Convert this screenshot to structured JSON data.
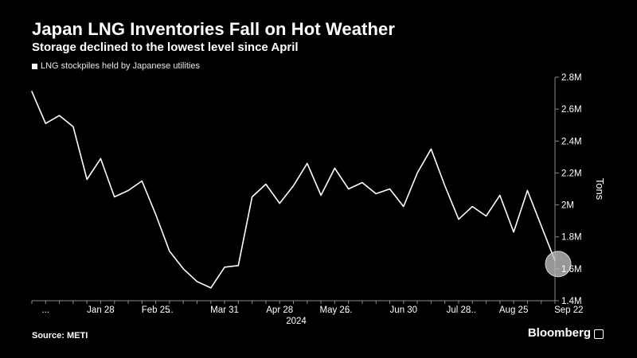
{
  "header": {
    "title": "Japan LNG Inventories Fall on Hot Weather",
    "subtitle": "Storage declined to the lowest level since April"
  },
  "legend": {
    "label": "LNG stockpiles held by Japanese utilities"
  },
  "footer": {
    "source": "Source: METI",
    "brand": "Bloomberg"
  },
  "colors": {
    "background": "#000000",
    "line": "#ffffff",
    "text": "#ffffff",
    "highlight": "#bdbdbd"
  },
  "chart_data": {
    "type": "line",
    "title": "Japan LNG Inventories Fall on Hot Weather",
    "subtitle": "Storage declined to the lowest level since April",
    "ylabel": "Tons",
    "xlabel": "",
    "ylim": [
      1.4,
      2.8
    ],
    "y_ticks": [
      1.4,
      1.6,
      1.8,
      2.0,
      2.2,
      2.4,
      2.6,
      2.8
    ],
    "y_tick_labels": [
      "1.4M",
      "1.6M",
      "1.8M",
      "2M",
      "2.2M",
      "2.4M",
      "2.6M",
      "2.8M"
    ],
    "y_axis_side": "right",
    "grid": false,
    "legend_position": "top-left",
    "x_tick_labels": [
      {
        "index": 1,
        "label": "..."
      },
      {
        "index": 5,
        "label": "Jan 28"
      },
      {
        "index": 9,
        "label": "Feb 25"
      },
      {
        "index": 10,
        "label": "..."
      },
      {
        "index": 14,
        "label": "Mar 31"
      },
      {
        "index": 18,
        "label": "Apr 28"
      },
      {
        "index": 22,
        "label": "May 26"
      },
      {
        "index": 23,
        "label": "..."
      },
      {
        "index": 27,
        "label": "Jun 30"
      },
      {
        "index": 31,
        "label": "Jul 28"
      },
      {
        "index": 32,
        "label": "..."
      },
      {
        "index": 35,
        "label": "Aug 25"
      },
      {
        "index": 39,
        "label": "Sep 22"
      }
    ],
    "year_label": "2024",
    "series": [
      {
        "name": "LNG stockpiles held by Japanese utilities",
        "values": [
          2.71,
          2.51,
          2.56,
          2.49,
          2.16,
          2.29,
          2.05,
          2.09,
          2.15,
          1.94,
          1.71,
          1.6,
          1.52,
          1.48,
          1.61,
          1.62,
          2.05,
          2.13,
          2.01,
          2.12,
          2.26,
          2.06,
          2.23,
          2.1,
          2.14,
          2.07,
          2.1,
          1.99,
          2.2,
          2.35,
          2.12,
          1.91,
          1.99,
          1.93,
          2.06,
          1.83,
          2.09,
          1.87,
          1.65
        ]
      }
    ],
    "highlight_last_point": true
  }
}
